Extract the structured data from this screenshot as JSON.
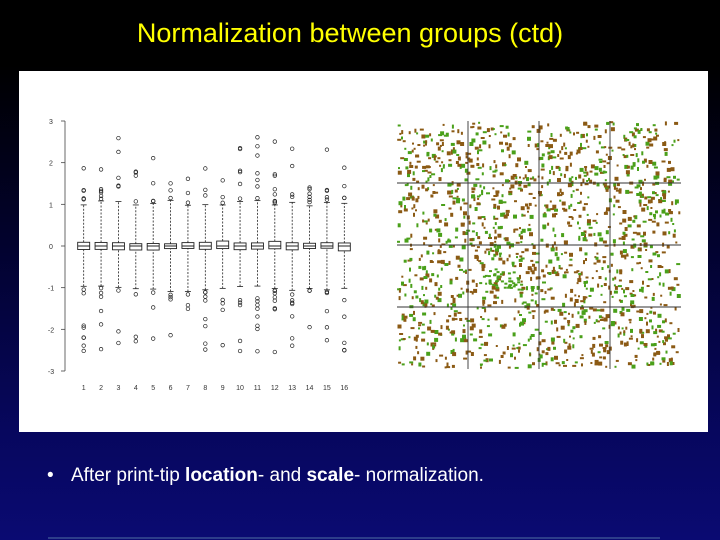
{
  "slide": {
    "title": "Normalization between groups (ctd)",
    "bullet": {
      "pre": "After print-tip ",
      "bold1": "location",
      "mid": "- and ",
      "bold2": "scale",
      "post": "-  normalization."
    }
  },
  "boxplot": {
    "x_ticks": [
      "1",
      "2",
      "3",
      "4",
      "5",
      "6",
      "7",
      "8",
      "9",
      "10",
      "11",
      "12",
      "13",
      "14",
      "15",
      "16"
    ],
    "y_ticks": [
      "-3",
      "-2",
      "-1",
      "0",
      "1",
      "2",
      "3"
    ],
    "y_range": [
      -3.0,
      3.0
    ]
  },
  "image_grid": {
    "rows": 4,
    "cols": 4,
    "spot_colors": [
      "#8b5a14",
      "#4aa01a"
    ]
  }
}
